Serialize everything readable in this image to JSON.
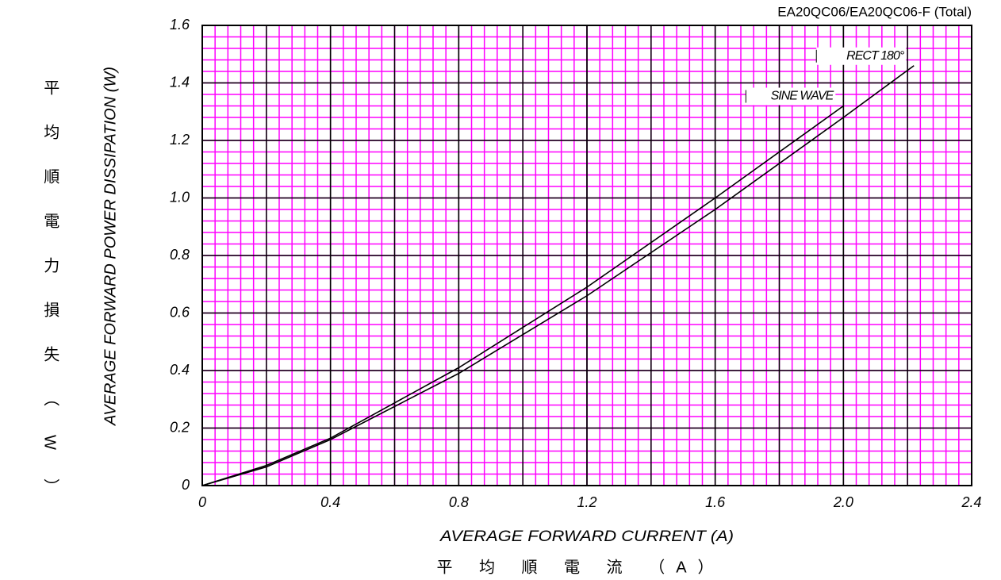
{
  "chart_data": {
    "type": "line",
    "title": "EA20QC06/EA20QC06-F (Total)",
    "y_label": "AVERAGE FORWARD POWER DISSIPATION (W)",
    "y_label_cn": "平均順電力損失（W）",
    "x_label": "AVERAGE FORWARD CURRENT (A)",
    "x_label_cn": "平 均 順 電 流 （A）",
    "xlim": [
      0,
      2.4
    ],
    "xticks": [
      0,
      0.4,
      0.8,
      1.2,
      1.6,
      {
        "value": 2,
        "label": "2.0"
      },
      2.4
    ],
    "ylim": [
      0,
      1.6
    ],
    "yticks": [
      0,
      0.2,
      0.4,
      0.6,
      0.8,
      {
        "value": 1,
        "label": "1.0"
      },
      1.2,
      1.4,
      1.6
    ],
    "grid": true,
    "series": [
      {
        "name": "RECT 180°",
        "color": "#000000",
        "x": [
          0,
          0.2,
          0.4,
          0.8,
          1.2,
          1.6,
          2.0,
          2.22
        ],
        "values": [
          0,
          0.065,
          0.16,
          0.39,
          0.66,
          0.96,
          1.28,
          1.46
        ]
      },
      {
        "name": "SINE WAVE",
        "color": "#000000",
        "x": [
          0,
          0.2,
          0.4,
          0.8,
          1.2,
          1.6,
          2.0
        ],
        "values": [
          0,
          0.07,
          0.165,
          0.41,
          0.69,
          1.0,
          1.32
        ]
      }
    ]
  }
}
